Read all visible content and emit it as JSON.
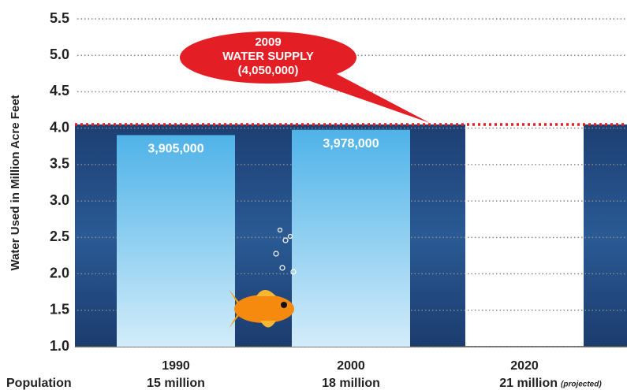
{
  "chart_data": {
    "type": "bar",
    "ylabel": "Water Used in Million Acre Feet",
    "categories": [
      "1990",
      "2000",
      "2020"
    ],
    "values": [
      3.905,
      3.978,
      null
    ],
    "value_labels": [
      "3,905,000",
      "3,978,000",
      null
    ],
    "color": "#4fb3e8",
    "population_label": "Population",
    "population": [
      "15 million",
      "18 million",
      "21 million"
    ],
    "population_note": "(projected)",
    "ylim": [
      1,
      5.5
    ],
    "yticks": [
      {
        "value": 1,
        "label": "1.0"
      },
      1.5,
      {
        "value": 2,
        "label": "2.0"
      },
      2.5,
      {
        "value": 3,
        "label": "3.0"
      },
      3.5,
      {
        "value": 4,
        "label": "4.0"
      },
      4.5,
      {
        "value": 5,
        "label": "5.0"
      },
      5.5
    ],
    "grid": true,
    "reference": {
      "value": 4.05,
      "color": "#e31e24",
      "labels": [
        "2009",
        "WATER SUPPLY",
        "(4,050,000)"
      ]
    }
  }
}
